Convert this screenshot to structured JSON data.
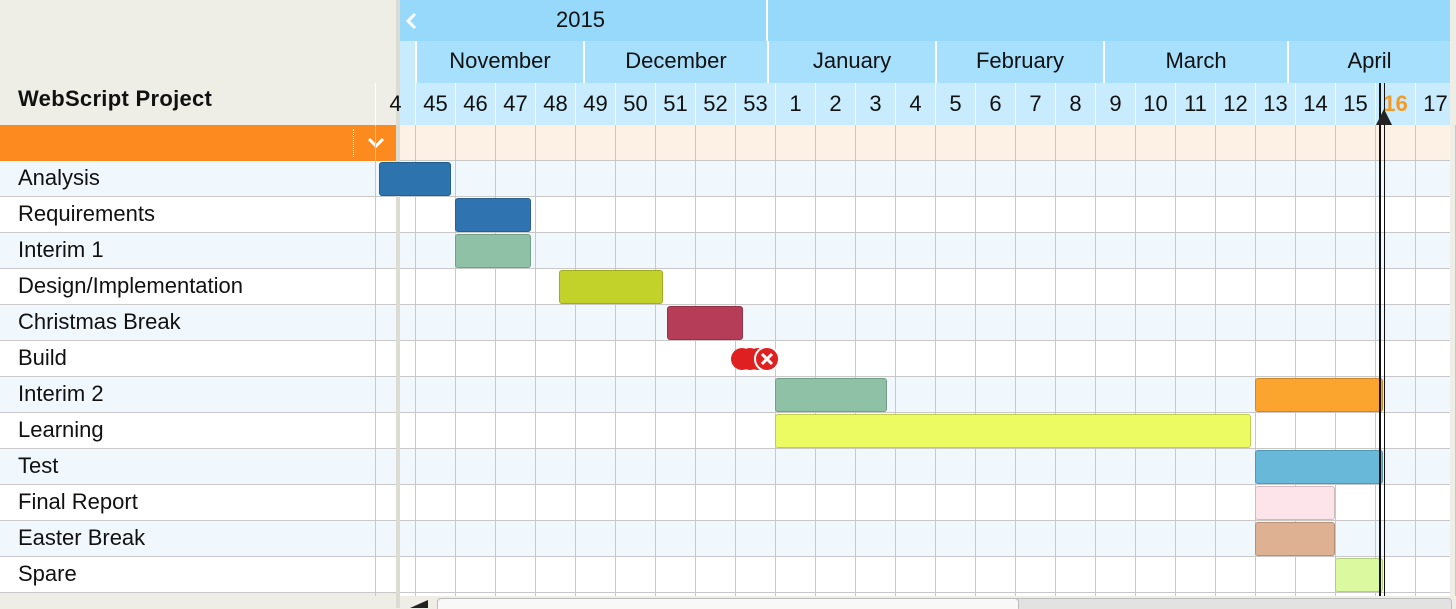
{
  "project": {
    "title": "WebScript Project"
  },
  "timeline": {
    "year": "2015",
    "months": [
      "November",
      "December",
      "January",
      "February",
      "March",
      "April"
    ],
    "weeks": [
      "4",
      "45",
      "46",
      "47",
      "48",
      "49",
      "50",
      "51",
      "52",
      "53",
      "1",
      "2",
      "3",
      "4",
      "5",
      "6",
      "7",
      "8",
      "9",
      "10",
      "11",
      "12",
      "13",
      "14",
      "15",
      "16",
      "17"
    ],
    "current_week": "16"
  },
  "tasks": [
    {
      "name": "Analysis",
      "bars": [
        {
          "start_week": 44.1,
          "end_week": 45.9,
          "color": "#2d74ae"
        }
      ]
    },
    {
      "name": "Requirements",
      "bars": [
        {
          "start_week": 46.0,
          "end_week": 47.9,
          "color": "#2f74b0"
        }
      ]
    },
    {
      "name": "Interim 1",
      "bars": [
        {
          "start_week": 46.0,
          "end_week": 47.9,
          "color": "#8fc1a6"
        }
      ]
    },
    {
      "name": "Design/Implementation",
      "bars": [
        {
          "start_week": 48.6,
          "end_week": 51.2,
          "color": "#c3d22a"
        }
      ]
    },
    {
      "name": "Christmas Break",
      "bars": [
        {
          "start_week": 51.3,
          "end_week": 53.2,
          "color": "#b53d58"
        }
      ]
    },
    {
      "name": "Build",
      "bars": []
    },
    {
      "name": "Interim 2",
      "bars": [
        {
          "start_week": 1.0,
          "end_week": 3.8,
          "color": "#8fc1a6"
        },
        {
          "start_week": 13.0,
          "end_week": 16.2,
          "color": "#fba52f"
        }
      ]
    },
    {
      "name": "Learning",
      "bars": [
        {
          "start_week": 1.0,
          "end_week": 12.9,
          "color": "#ebfb61"
        }
      ]
    },
    {
      "name": "Test",
      "bars": [
        {
          "start_week": 13.0,
          "end_week": 16.2,
          "color": "#68b8da"
        }
      ]
    },
    {
      "name": "Final Report",
      "bars": [
        {
          "start_week": 13.0,
          "end_week": 15.0,
          "color": "#fde4ea"
        }
      ]
    },
    {
      "name": "Easter Break",
      "bars": [
        {
          "start_week": 13.0,
          "end_week": 15.0,
          "color": "#ddb191"
        }
      ]
    },
    {
      "name": "Spare",
      "bars": [
        {
          "start_week": 15.0,
          "end_week": 16.2,
          "color": "#dbfa9f"
        }
      ]
    }
  ],
  "colors": {
    "header_orange": "#fd8a1e",
    "year_bar": "#96d9fb",
    "week_bar": "#c8ecfd",
    "row_alt": "#f1f8fd",
    "header_row_tint": "#fdf0e5",
    "today_line": "#111111",
    "milestone": "#e02020"
  },
  "icons": {
    "dropdown": "chevron-down-icon",
    "prev": "chevron-left-icon",
    "milestone": "error-x-icon",
    "today": "today-marker-icon"
  }
}
